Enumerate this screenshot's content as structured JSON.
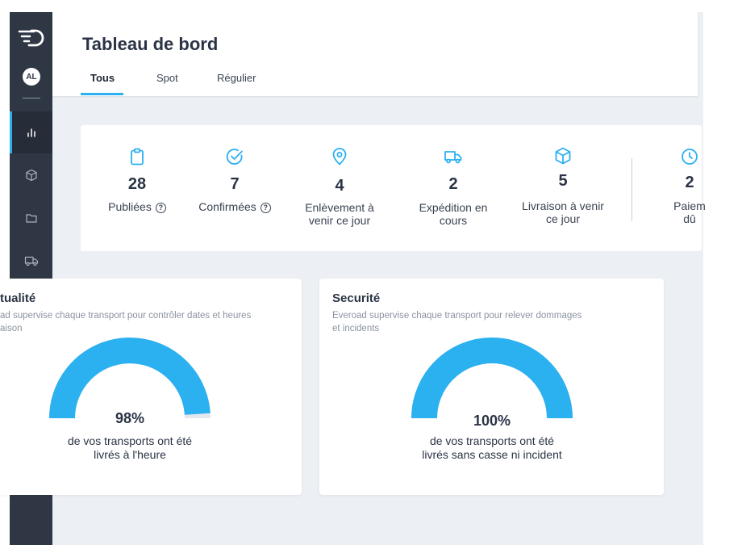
{
  "header": {
    "title": "Tableau de bord",
    "tabs": [
      {
        "label": "Tous",
        "active": true
      },
      {
        "label": "Spot",
        "active": false
      },
      {
        "label": "Régulier",
        "active": false
      }
    ]
  },
  "sidebar": {
    "avatar_initials": "AL",
    "items": [
      {
        "icon": "bar-chart-icon",
        "active": true
      },
      {
        "icon": "box-icon",
        "active": false
      },
      {
        "icon": "folder-icon",
        "active": false
      },
      {
        "icon": "truck-icon",
        "active": false
      }
    ]
  },
  "stats": [
    {
      "icon": "clipboard-icon",
      "value": "28",
      "label": "Publiées",
      "help": true
    },
    {
      "icon": "check-circle-icon",
      "value": "7",
      "label": "Confirmées",
      "help": true
    },
    {
      "icon": "map-pin-icon",
      "value": "4",
      "label_line1": "Enlèvement à",
      "label_line2": "venir ce jour"
    },
    {
      "icon": "truck-icon",
      "value": "2",
      "label_line1": "Expédition en",
      "label_line2": "cours"
    },
    {
      "icon": "package-icon",
      "value": "5",
      "label_line1": "Livraison à venir",
      "label_line2": "ce jour"
    },
    {
      "icon": "clock-icon",
      "value": "2",
      "label_line1": "Paiem",
      "label_line2": "dû"
    }
  ],
  "kpis": [
    {
      "title": "tualité",
      "desc_line1": "ad supervise chaque transport pour contrôler dates et heures",
      "desc_line2": "aison",
      "value": "98%",
      "percent": 98,
      "caption_line1": "de vos transports ont été",
      "caption_line2": "livrés à l'heure"
    },
    {
      "title": "Securité",
      "desc_line1": "Everoad supervise chaque transport pour relever dommages",
      "desc_line2": "et incidents",
      "value": "100%",
      "percent": 100,
      "caption_line1": "de vos transports ont été",
      "caption_line2": "livrés sans casse ni incident"
    }
  ],
  "colors": {
    "accent": "#2bb0f0",
    "sidebar": "#2f3745",
    "gauge_track": "#e3e8ef"
  }
}
